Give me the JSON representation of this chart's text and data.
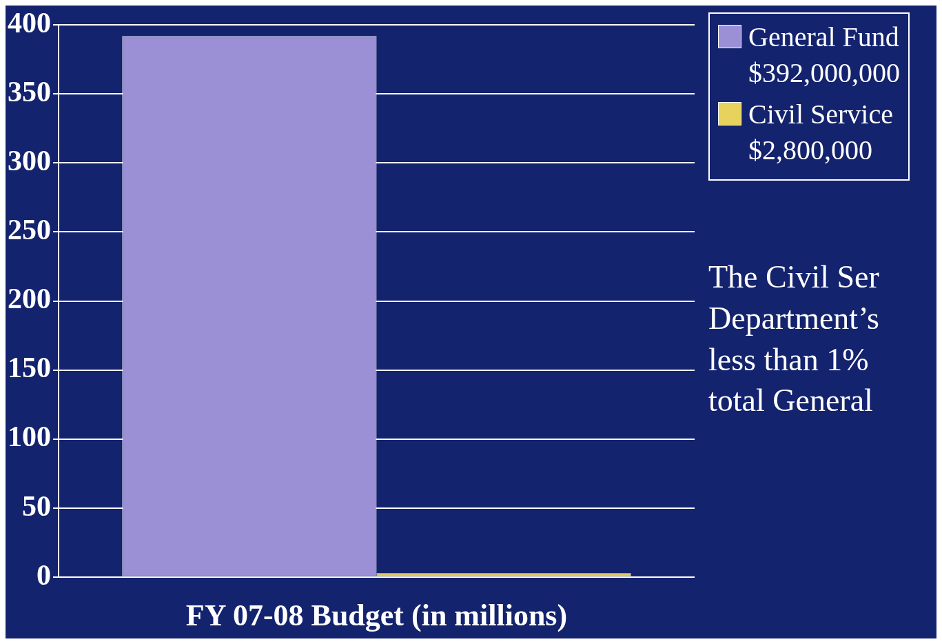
{
  "chart_data": {
    "type": "bar",
    "xlabel": "FY 07-08 Budget (in millions)",
    "categories": [
      null
    ],
    "series": [
      {
        "name": "General Fund\n$392,000,000",
        "color": "#9b8fd6",
        "values": [
          392
        ]
      },
      {
        "name": "Civil Service\n$2,800,000",
        "color": "#e6d25c",
        "values": [
          2.8
        ]
      }
    ],
    "ylim": [
      0,
      400
    ],
    "yticks": [
      0,
      50,
      100,
      150,
      200,
      250,
      300,
      350,
      400
    ],
    "grid": "y",
    "legend": "top right",
    "annotations": [
      "The Civil Ser\nDepartment’s\nless than 1%\ntotal General"
    ]
  }
}
